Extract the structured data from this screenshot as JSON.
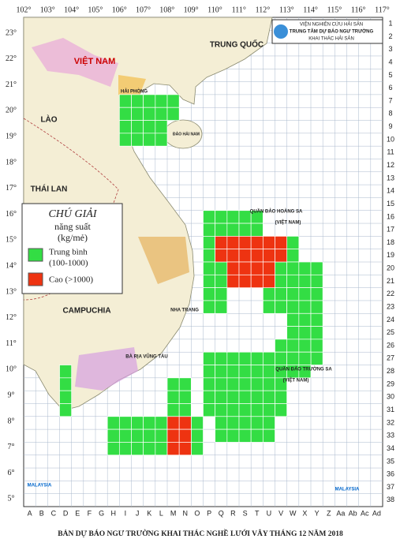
{
  "header": {
    "lines": [
      "VIỆN NGHIÊN CỨU HẢI SẢN",
      "TRUNG TÂM DỰ BÁO NGƯ TRƯỜNG",
      "KHAI THÁC HẢI SẢN"
    ]
  },
  "map": {
    "longitude_labels": [
      "102°",
      "103°",
      "104°",
      "105°",
      "106°",
      "107°",
      "108°",
      "109°",
      "110°",
      "111°",
      "112°",
      "113°",
      "114°",
      "115°",
      "116°",
      "117°"
    ],
    "latitude_labels": [
      "23°",
      "22°",
      "21°",
      "20°",
      "19°",
      "18°",
      "17°",
      "16°",
      "15°",
      "14°",
      "13°",
      "12°",
      "11°",
      "10°",
      "9°",
      "8°",
      "7°",
      "6°",
      "5°"
    ],
    "column_labels": [
      "A",
      "B",
      "C",
      "D",
      "E",
      "F",
      "G",
      "H",
      "I",
      "J",
      "K",
      "L",
      "M",
      "N",
      "O",
      "P",
      "Q",
      "R",
      "S",
      "T",
      "U",
      "V",
      "W",
      "X",
      "Y",
      "Z",
      "Aa",
      "Ab",
      "Ac",
      "Ad"
    ],
    "row_labels": [
      "1",
      "2",
      "3",
      "4",
      "5",
      "6",
      "7",
      "8",
      "9",
      "10",
      "11",
      "12",
      "13",
      "14",
      "15",
      "16",
      "17",
      "18",
      "19",
      "20",
      "21",
      "22",
      "23",
      "24",
      "25",
      "26",
      "27",
      "28",
      "29",
      "30",
      "31",
      "32",
      "33",
      "34",
      "35",
      "36",
      "37",
      "38"
    ],
    "places": [
      "VIỆT NAM",
      "TRUNG QUỐC",
      "LÀO",
      "THÁI LAN",
      "CAMPUCHIA",
      "ĐẢO HẢI NAM",
      "HẢI PHÒNG",
      "NHA TRANG",
      "BÀ RỊA VŨNG TÀU",
      "QUẦN ĐẢO HOÀNG SA",
      "(VIỆT NAM)",
      "QUẦN ĐẢO TRƯỜNG SA",
      "(VIỆT NAM)",
      "MALAYSIA",
      "MALAYSIA"
    ]
  },
  "legend": {
    "title": "CHÚ GIẢI",
    "subtitle": "năng suất",
    "unit": "(kg/mẻ)",
    "items": [
      {
        "label": "Trung bình",
        "range": "(100-1000)"
      },
      {
        "label": "Cao (>1000)"
      }
    ]
  },
  "title": "BẢN DỰ BÁO NGƯ TRƯỜNG KHAI THÁC NGHỀ LƯỚI VÂY THÁNG 12 NĂM 2018"
}
